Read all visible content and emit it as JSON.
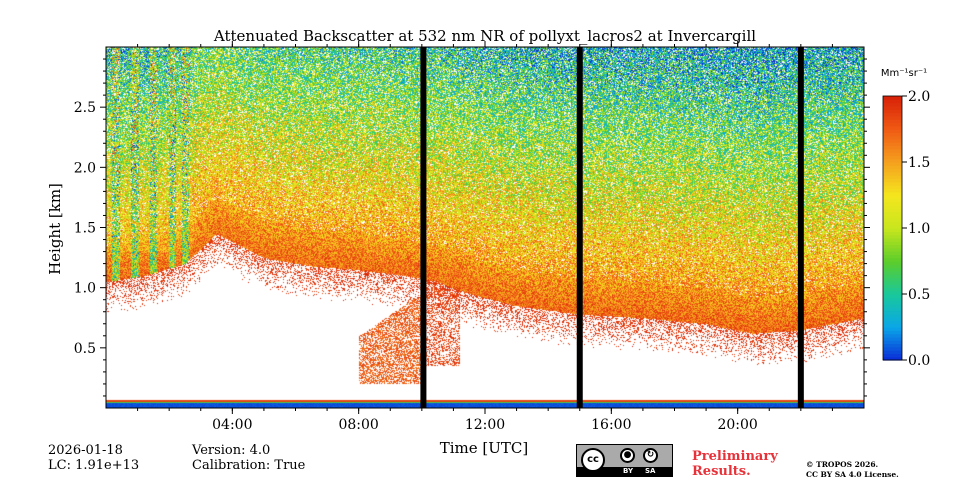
{
  "chart_data": {
    "type": "heatmap",
    "title": "Attenuated Backscatter at 532 nm NR of pollyxt_lacros2 at Invercargill",
    "xlabel": "Time [UTC]",
    "ylabel": "Height [km]",
    "x_ticks": [
      "04:00",
      "08:00",
      "12:00",
      "16:00",
      "20:00"
    ],
    "x_tick_hours": [
      4,
      8,
      12,
      16,
      20
    ],
    "xlim_hours": [
      0,
      24
    ],
    "y_ticks": [
      "0.5",
      "1.0",
      "1.5",
      "2.0",
      "2.5"
    ],
    "y_tick_values": [
      0.5,
      1.0,
      1.5,
      2.0,
      2.5
    ],
    "ylim_km": [
      0,
      3.0
    ],
    "colorbar": {
      "unit_label": "Mm⁻¹sr⁻¹",
      "ticks": [
        "0.0",
        "0.5",
        "1.0",
        "1.5",
        "2.0"
      ],
      "tick_values": [
        0.0,
        0.5,
        1.0,
        1.5,
        2.0
      ],
      "range": [
        0.0,
        2.0
      ],
      "colors": [
        "#0a2bd6",
        "#0aa6e8",
        "#19c89b",
        "#5ccd2a",
        "#c8e61e",
        "#f5e61e",
        "#f5a01e",
        "#f05a14",
        "#d72008"
      ]
    },
    "data_gaps_hours": [
      10.05,
      15.0,
      22.0
    ],
    "cloud_base_profile_km": [
      [
        0.0,
        1.05
      ],
      [
        1.2,
        1.1
      ],
      [
        2.5,
        1.2
      ],
      [
        3.5,
        1.45
      ],
      [
        5.0,
        1.25
      ],
      [
        6.5,
        1.18
      ],
      [
        8.0,
        1.15
      ],
      [
        9.5,
        1.1
      ],
      [
        10.5,
        1.05
      ],
      [
        11.5,
        0.95
      ],
      [
        13.0,
        0.85
      ],
      [
        15.0,
        0.78
      ],
      [
        17.0,
        0.75
      ],
      [
        19.0,
        0.7
      ],
      [
        20.5,
        0.62
      ],
      [
        22.0,
        0.65
      ],
      [
        24.0,
        0.75
      ]
    ],
    "rain_streak_hours": [
      0.3,
      0.9,
      1.5,
      2.1,
      2.5
    ]
  },
  "info": {
    "date": "2026-01-18",
    "lc": "LC: 1.91e+13",
    "version": "Version: 4.0",
    "calibration": "Calibration: True"
  },
  "preliminary": [
    "Preliminary",
    "Results."
  ],
  "license": {
    "badge_cc": "cc",
    "badge_by": "BY",
    "badge_sa": "SA",
    "line1": "© TROPOS 2026.",
    "line2": "CC BY SA 4.0 License."
  }
}
